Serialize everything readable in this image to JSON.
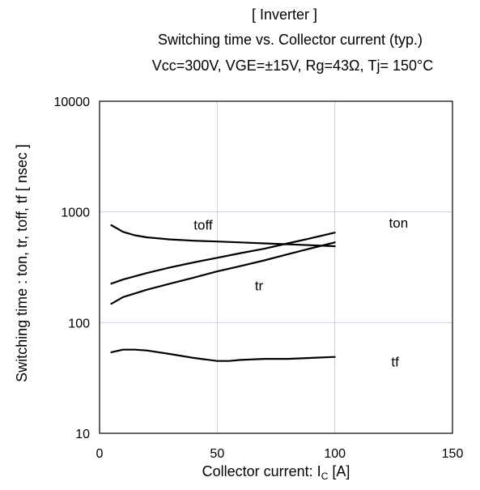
{
  "chart_data": {
    "type": "line",
    "title": "[ Inverter ]",
    "subtitle": "Switching time  vs. Collector current (typ.)",
    "conditions": "Vcc=300V, VGE=±15V, Rg=43Ω, Tj= 150°C",
    "xlabel_main": "Collector current: I",
    "xlabel_sub": "C",
    "xlabel_unit": " [A]",
    "ylabel": "Switching time  :  ton, tr, toff, tf  [ nsec ]",
    "xlim": [
      0,
      150
    ],
    "ylim": [
      10,
      10000
    ],
    "yscale": "log",
    "grid": true,
    "x_ticks": [
      "0",
      "50",
      "100",
      "150"
    ],
    "y_ticks": [
      "10",
      "100",
      "1000",
      "10000"
    ],
    "series": [
      {
        "name": "toff",
        "x": [
          5,
          10,
          15,
          20,
          30,
          40,
          50,
          60,
          70,
          80,
          90,
          100
        ],
        "y": [
          760,
          660,
          615,
          590,
          565,
          550,
          540,
          530,
          520,
          510,
          500,
          490
        ]
      },
      {
        "name": "ton",
        "x": [
          5,
          10,
          20,
          30,
          40,
          50,
          60,
          70,
          80,
          90,
          100
        ],
        "y": [
          225,
          245,
          280,
          315,
          350,
          385,
          425,
          465,
          520,
          580,
          650
        ]
      },
      {
        "name": "tr",
        "x": [
          5,
          10,
          20,
          30,
          40,
          50,
          60,
          70,
          80,
          90,
          100
        ],
        "y": [
          148,
          170,
          198,
          225,
          255,
          290,
          325,
          365,
          415,
          470,
          530
        ]
      },
      {
        "name": "tf",
        "x": [
          5,
          10,
          15,
          20,
          30,
          40,
          50,
          55,
          60,
          70,
          80,
          90,
          100
        ],
        "y": [
          54,
          57,
          57,
          56,
          52,
          48,
          45,
          45,
          46,
          47,
          47,
          48,
          49
        ]
      }
    ],
    "labels": [
      {
        "text": "toff",
        "x": 40,
        "y": 690
      },
      {
        "text": "ton",
        "x": 123,
        "y": 720
      },
      {
        "text": "tr",
        "x": 66,
        "y": 195
      },
      {
        "text": "tf",
        "x": 124,
        "y": 40
      }
    ]
  }
}
